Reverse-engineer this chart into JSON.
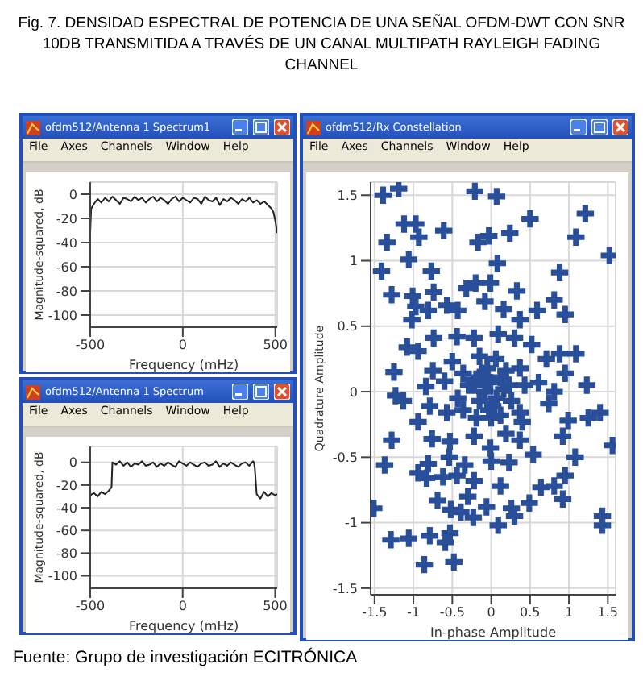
{
  "chart_data": [
    {
      "type": "line",
      "title": "ofdm512/Antenna 1 Spectrum1",
      "annotations": [
        "File",
        "Axes",
        "Channels",
        "Window",
        "Help"
      ],
      "xlabel": "Frequency (mHz)",
      "ylabel": "Magnitude-squared, dB",
      "color": "#222222",
      "grid": true,
      "xlim": [
        -500,
        510
      ],
      "xticks": [
        -500,
        0,
        500
      ],
      "ylim": [
        -110,
        10
      ],
      "yticks": [
        -100,
        -80,
        -60,
        -40,
        -20,
        0
      ],
      "x": [
        -500,
        -495,
        -480,
        -460,
        -440,
        -420,
        -400,
        -380,
        -360,
        -340,
        -320,
        -300,
        -280,
        -260,
        -240,
        -220,
        -200,
        -180,
        -160,
        -140,
        -120,
        -100,
        -80,
        -60,
        -40,
        -20,
        0,
        20,
        40,
        60,
        80,
        100,
        120,
        140,
        160,
        180,
        200,
        220,
        240,
        260,
        280,
        300,
        320,
        340,
        360,
        380,
        400,
        420,
        440,
        460,
        480,
        490,
        500,
        510
      ],
      "values": [
        -32,
        -12,
        -8,
        -4,
        -7,
        -3,
        -6,
        -2,
        -5,
        -8,
        -3,
        -4,
        -6,
        -2,
        -5,
        -3,
        -7,
        -4,
        -2,
        -6,
        -3,
        -5,
        -8,
        -4,
        -2,
        -6,
        -3,
        -5,
        -7,
        -3,
        -4,
        -8,
        -2,
        -5,
        -6,
        -3,
        -9,
        -4,
        -6,
        -3,
        -5,
        -8,
        -4,
        -6,
        -3,
        -7,
        -5,
        -8,
        -6,
        -9,
        -12,
        -15,
        -22,
        -32
      ]
    },
    {
      "type": "line",
      "title": "ofdm512/Antenna 1 Spectrum",
      "annotations": [
        "File",
        "Axes",
        "Channels",
        "Window",
        "Help"
      ],
      "xlabel": "Frequency (mHz)",
      "ylabel": "Magnitude-squared, dB",
      "color": "#222222",
      "grid": true,
      "xlim": [
        -500,
        511
      ],
      "xticks": [
        -500,
        0,
        500
      ],
      "ylim": [
        -111,
        14
      ],
      "yticks": [
        -100,
        -80,
        -60,
        -40,
        -20,
        0
      ],
      "x": [
        -500,
        -480,
        -460,
        -440,
        -420,
        -400,
        -385,
        -380,
        -360,
        -340,
        -320,
        -300,
        -280,
        -260,
        -240,
        -220,
        -200,
        -180,
        -160,
        -140,
        -120,
        -100,
        -80,
        -60,
        -40,
        -20,
        0,
        20,
        40,
        60,
        80,
        100,
        120,
        140,
        160,
        180,
        200,
        220,
        240,
        260,
        280,
        300,
        320,
        340,
        360,
        380,
        385,
        390,
        400,
        420,
        440,
        460,
        480,
        500,
        511
      ],
      "values": [
        -29,
        -27,
        -30,
        -26,
        -28,
        -25,
        -22,
        0,
        -2,
        1,
        -3,
        0,
        -4,
        -1,
        -2,
        1,
        -3,
        -2,
        0,
        -4,
        -1,
        -3,
        0,
        -2,
        -4,
        1,
        -1,
        -3,
        0,
        -2,
        -4,
        -1,
        0,
        -3,
        -2,
        1,
        -4,
        -1,
        -3,
        0,
        -2,
        -4,
        -1,
        0,
        -3,
        1,
        0,
        -5,
        -28,
        -32,
        -26,
        -30,
        -27,
        -29,
        -28
      ]
    },
    {
      "type": "scatter",
      "title": "ofdm512/Rx Constellation",
      "annotations": [
        "File",
        "Axes",
        "Channels",
        "Window",
        "Help"
      ],
      "xlabel": "In-phase Amplitude",
      "ylabel": "Quadrature Amplitude",
      "color": "#2a4f9a",
      "marker": "cross",
      "grid": true,
      "xlim": [
        -1.55,
        1.6
      ],
      "xticks": [
        -1.5,
        -1,
        -0.5,
        0,
        0.5,
        1,
        1.5
      ],
      "ylim": [
        -1.55,
        1.6
      ],
      "yticks": [
        -1.5,
        -1,
        -0.5,
        0,
        0.5,
        1,
        1.5
      ],
      "x": [
        -1.39,
        -1.19,
        -0.21,
        0.07,
        0.5,
        1.21,
        -1.34,
        -1.12,
        -0.97,
        -0.93,
        -0.61,
        -0.17,
        -0.03,
        0.24,
        1.09,
        1.52,
        -1.41,
        -1.06,
        -0.77,
        0.08,
        0.88,
        -1.28,
        -1.01,
        -0.97,
        -0.74,
        -0.57,
        -0.2,
        -0.32,
        -0.01,
        0.33,
        0.81,
        -1.02,
        -0.81,
        -0.43,
        -0.08,
        0.16,
        0.37,
        0.59,
        0.95,
        -1.08,
        -0.94,
        -0.74,
        -0.44,
        -0.22,
        0.09,
        0.3,
        0.52,
        0.88,
        1.09,
        -1.25,
        -0.75,
        -0.5,
        -0.36,
        -0.15,
        0.06,
        0.19,
        0.37,
        0.71,
        0.95,
        -1.23,
        -1.13,
        -0.84,
        -0.6,
        -0.29,
        -0.15,
        -0.08,
        -0.01,
        0.07,
        0.16,
        0.26,
        0.43,
        0.61,
        0.81,
        1.23,
        -0.94,
        -0.79,
        -0.57,
        -0.36,
        -0.19,
        -0.03,
        0.12,
        0.37,
        0.74,
        0.99,
        1.25,
        1.4,
        1.56,
        -1.28,
        -0.76,
        -0.53,
        -0.22,
        -0.01,
        0.19,
        0.37,
        0.92,
        1.08,
        -1.37,
        -0.81,
        -0.54,
        -0.34,
        0,
        0.23,
        0.54,
        -0.94,
        -0.83,
        -0.62,
        -0.44,
        -0.22,
        0.12,
        0.64,
        0.81,
        0.95,
        -0.69,
        -0.3,
        -0.06,
        0.26,
        0.49,
        0.92,
        -1.51,
        -0.52,
        -0.23,
        0.09,
        0.3,
        1.43,
        1.43,
        -1.29,
        -1.06,
        -0.79,
        -0.53,
        -0.59,
        -0.86,
        -0.48,
        -0.39,
        0,
        -0.12,
        -0.05,
        0.12,
        -0.15,
        -0.22,
        0.23,
        0.02,
        -0.43,
        0.4
      ],
      "values": [
        1.5,
        1.55,
        1.53,
        1.49,
        1.32,
        1.36,
        1.14,
        1.28,
        1.28,
        1.18,
        1.23,
        1.14,
        1.19,
        1.21,
        1.18,
        1.04,
        0.92,
        1.01,
        0.92,
        0.98,
        0.91,
        0.74,
        0.73,
        0.65,
        0.76,
        0.66,
        0.83,
        0.79,
        0.83,
        0.77,
        0.7,
        0.55,
        0.62,
        0.62,
        0.69,
        0.63,
        0.55,
        0.62,
        0.59,
        0.34,
        0.31,
        0.41,
        0.42,
        0.41,
        0.44,
        0.41,
        0.36,
        0.29,
        0.29,
        0.15,
        0.16,
        0.23,
        0.14,
        0.27,
        0.25,
        0.16,
        0.18,
        0.25,
        0.14,
        -0.03,
        -0.07,
        0.04,
        0.08,
        0.05,
        0.11,
        0,
        0.07,
        -0.05,
        0.02,
        -0.07,
        0.05,
        0.07,
        0,
        0.05,
        -0.23,
        -0.11,
        -0.16,
        -0.14,
        -0.2,
        -0.14,
        -0.18,
        -0.16,
        -0.09,
        -0.22,
        -0.2,
        -0.16,
        -0.41,
        -0.37,
        -0.36,
        -0.38,
        -0.34,
        -0.43,
        -0.32,
        -0.37,
        -0.34,
        -0.5,
        -0.56,
        -0.55,
        -0.5,
        -0.56,
        -0.53,
        -0.54,
        -0.48,
        -0.62,
        -0.66,
        -0.65,
        -0.64,
        -0.68,
        -0.72,
        -0.73,
        -0.72,
        -0.64,
        -0.83,
        -0.8,
        -0.88,
        -0.89,
        -0.85,
        -0.82,
        -0.89,
        -0.9,
        -0.96,
        -1.02,
        -0.95,
        -0.95,
        -1.02,
        -1.13,
        -1.12,
        -1.1,
        -1.08,
        -1.15,
        -1.32,
        -1.3,
        -0.92,
        -0.2,
        0.14,
        0.18,
        0.11,
        -0.07,
        0.05,
        0.05,
        -0.11,
        -0.05,
        -0.23
      ]
    },
    {
      "type": "other",
      "title": "Fig. 7. DENSIDAD ESPECTRAL DE POTENCIA DE UNA SEÑAL OFDM-DWT CON SNR 10DB TRANSMITIDA A TRAVÉS DE UN CANAL MULTIPATH RAYLEIGH FADING CHANNEL",
      "annotations": [
        "Fuente: Grupo de investigación ECITRÓNICA"
      ]
    }
  ]
}
